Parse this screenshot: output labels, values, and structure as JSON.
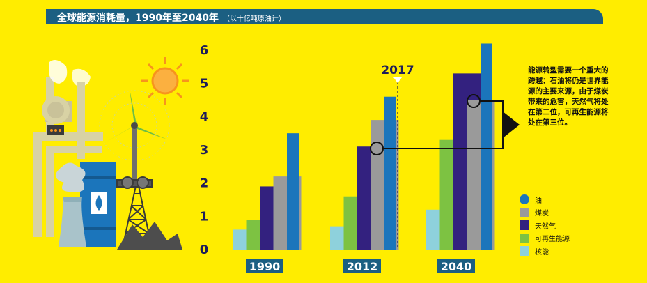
{
  "title": {
    "main": "全球能源消耗量，1990年至2040年",
    "sub": "（以十亿吨原油计）"
  },
  "marker_label": "2017",
  "annotation": "能源转型需要一个重大的跨越：石油将仍是世界能源的主要来源，由于煤炭带来的危害，天然气将处在第二位，可再生能源将处在第三位。",
  "chart_data": {
    "type": "bar",
    "categories": [
      "1990",
      "2012",
      "2040"
    ],
    "series": [
      {
        "name": "核能",
        "color": "#8ed1dc",
        "values": [
          0.6,
          0.7,
          1.2
        ]
      },
      {
        "name": "可再生能源",
        "color": "#7dc242",
        "values": [
          0.9,
          1.6,
          3.3
        ]
      },
      {
        "name": "天然气",
        "color": "#33217f",
        "values": [
          1.9,
          3.1,
          5.3
        ]
      },
      {
        "name": "煤炭",
        "color": "#9a9a9a",
        "values": [
          2.2,
          3.9,
          4.5
        ]
      },
      {
        "name": "油",
        "color": "#1b75bb",
        "values": [
          3.5,
          4.6,
          6.2
        ]
      }
    ],
    "yticks": [
      "0",
      "1",
      "2",
      "3",
      "4",
      "5",
      "6"
    ],
    "ylim": [
      0,
      6.2
    ],
    "legend": [
      {
        "label": "油",
        "color": "#1b75bb",
        "shape": "circle"
      },
      {
        "label": "煤炭",
        "color": "#9a9a9a",
        "shape": "square"
      },
      {
        "label": "天然气",
        "color": "#33217f",
        "shape": "square"
      },
      {
        "label": "可再生能源",
        "color": "#7dc242",
        "shape": "square"
      },
      {
        "label": "核能",
        "color": "#8ed1dc",
        "shape": "square"
      }
    ]
  }
}
